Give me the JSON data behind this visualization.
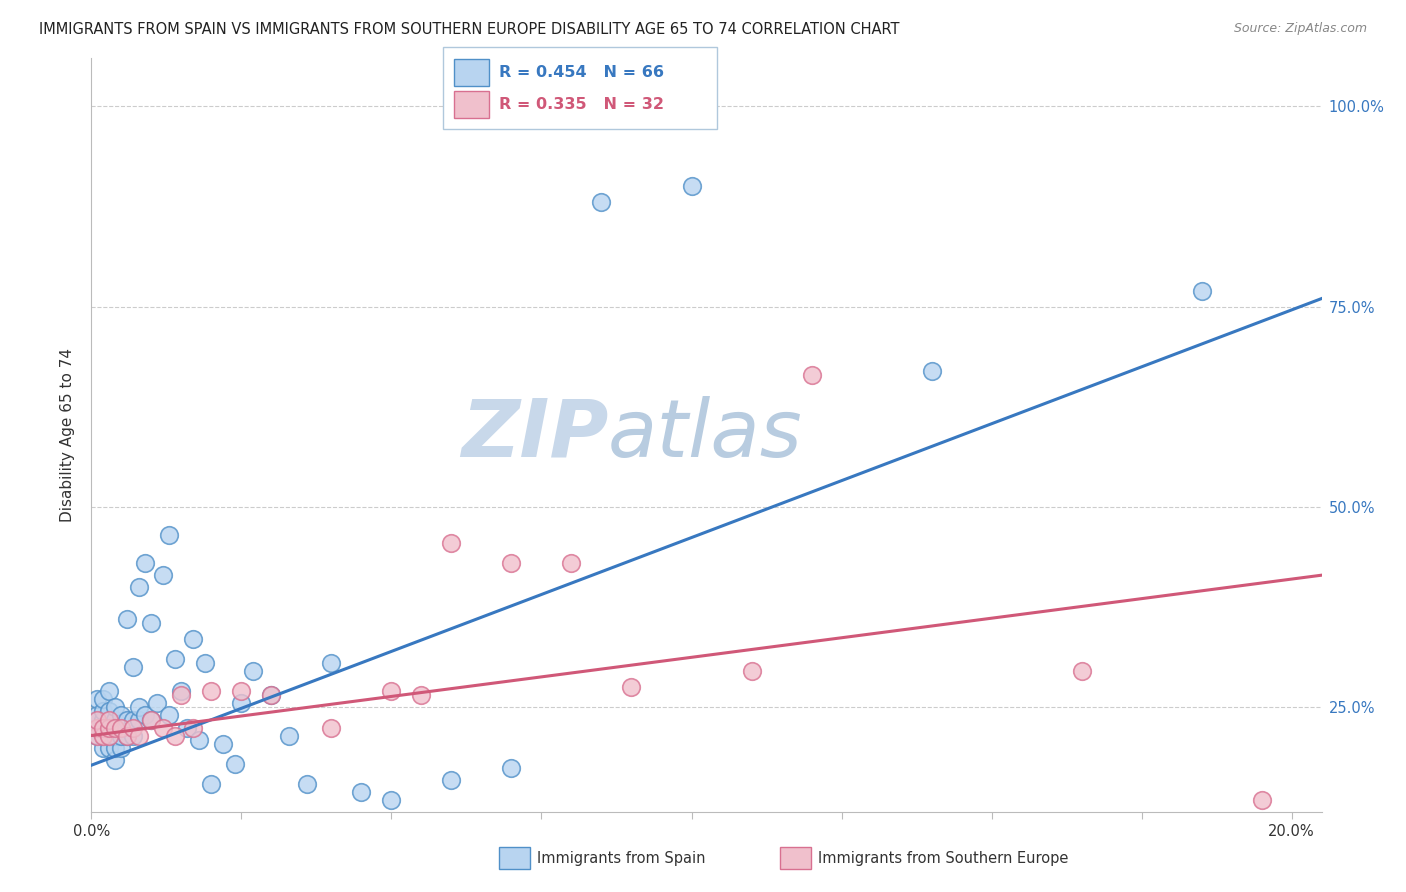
{
  "title": "IMMIGRANTS FROM SPAIN VS IMMIGRANTS FROM SOUTHERN EUROPE DISABILITY AGE 65 TO 74 CORRELATION CHART",
  "source": "Source: ZipAtlas.com",
  "ylabel": "Disability Age 65 to 74",
  "xlim": [
    0.0,
    0.205
  ],
  "ylim": [
    0.12,
    1.06
  ],
  "yticks": [
    0.25,
    0.5,
    0.75,
    1.0
  ],
  "ytick_labels": [
    "25.0%",
    "50.0%",
    "75.0%",
    "100.0%"
  ],
  "xticks": [
    0.0,
    0.025,
    0.05,
    0.075,
    0.1,
    0.125,
    0.15,
    0.175,
    0.2
  ],
  "legend_R1": "R = 0.454",
  "legend_N1": "N = 66",
  "legend_R2": "R = 0.335",
  "legend_N2": "N = 32",
  "color_spain_fill": "#b8d4f0",
  "color_spain_edge": "#5090c8",
  "color_spain_line": "#3878c0",
  "color_southern_fill": "#f0c0cc",
  "color_southern_edge": "#d87090",
  "color_southern_line": "#d05878",
  "color_legend_border": "#b0c8dc",
  "watermark_zip": "#c8d8ea",
  "watermark_atlas": "#b8cce0",
  "background_color": "#ffffff",
  "grid_color": "#cccccc",
  "spain_line_x0": 0.0,
  "spain_line_x1": 0.205,
  "spain_line_y0": 0.178,
  "spain_line_y1": 0.76,
  "southern_line_x0": 0.0,
  "southern_line_x1": 0.205,
  "southern_line_y0": 0.215,
  "southern_line_y1": 0.415,
  "spain_x": [
    0.001,
    0.001,
    0.001,
    0.001,
    0.001,
    0.002,
    0.002,
    0.002,
    0.002,
    0.002,
    0.002,
    0.003,
    0.003,
    0.003,
    0.003,
    0.003,
    0.004,
    0.004,
    0.004,
    0.004,
    0.004,
    0.004,
    0.005,
    0.005,
    0.005,
    0.005,
    0.006,
    0.006,
    0.006,
    0.007,
    0.007,
    0.007,
    0.008,
    0.008,
    0.008,
    0.009,
    0.009,
    0.01,
    0.01,
    0.011,
    0.012,
    0.013,
    0.013,
    0.014,
    0.015,
    0.016,
    0.017,
    0.018,
    0.019,
    0.02,
    0.022,
    0.024,
    0.025,
    0.027,
    0.03,
    0.033,
    0.036,
    0.04,
    0.045,
    0.05,
    0.06,
    0.07,
    0.085,
    0.1,
    0.14,
    0.185
  ],
  "spain_y": [
    0.215,
    0.225,
    0.235,
    0.24,
    0.26,
    0.2,
    0.215,
    0.225,
    0.235,
    0.245,
    0.26,
    0.2,
    0.215,
    0.225,
    0.245,
    0.27,
    0.185,
    0.2,
    0.215,
    0.225,
    0.235,
    0.25,
    0.2,
    0.215,
    0.225,
    0.24,
    0.215,
    0.235,
    0.36,
    0.215,
    0.235,
    0.3,
    0.235,
    0.25,
    0.4,
    0.24,
    0.43,
    0.235,
    0.355,
    0.255,
    0.415,
    0.24,
    0.465,
    0.31,
    0.27,
    0.225,
    0.335,
    0.21,
    0.305,
    0.155,
    0.205,
    0.18,
    0.255,
    0.295,
    0.265,
    0.215,
    0.155,
    0.305,
    0.145,
    0.135,
    0.16,
    0.175,
    0.88,
    0.9,
    0.67,
    0.77
  ],
  "southern_x": [
    0.001,
    0.001,
    0.001,
    0.002,
    0.002,
    0.003,
    0.003,
    0.003,
    0.004,
    0.005,
    0.006,
    0.007,
    0.008,
    0.01,
    0.012,
    0.014,
    0.015,
    0.017,
    0.02,
    0.025,
    0.03,
    0.04,
    0.05,
    0.055,
    0.06,
    0.07,
    0.08,
    0.09,
    0.11,
    0.12,
    0.165,
    0.195
  ],
  "southern_y": [
    0.215,
    0.225,
    0.235,
    0.215,
    0.225,
    0.215,
    0.225,
    0.235,
    0.225,
    0.225,
    0.215,
    0.225,
    0.215,
    0.235,
    0.225,
    0.215,
    0.265,
    0.225,
    0.27,
    0.27,
    0.265,
    0.225,
    0.27,
    0.265,
    0.455,
    0.43,
    0.43,
    0.275,
    0.295,
    0.665,
    0.295,
    0.135
  ]
}
